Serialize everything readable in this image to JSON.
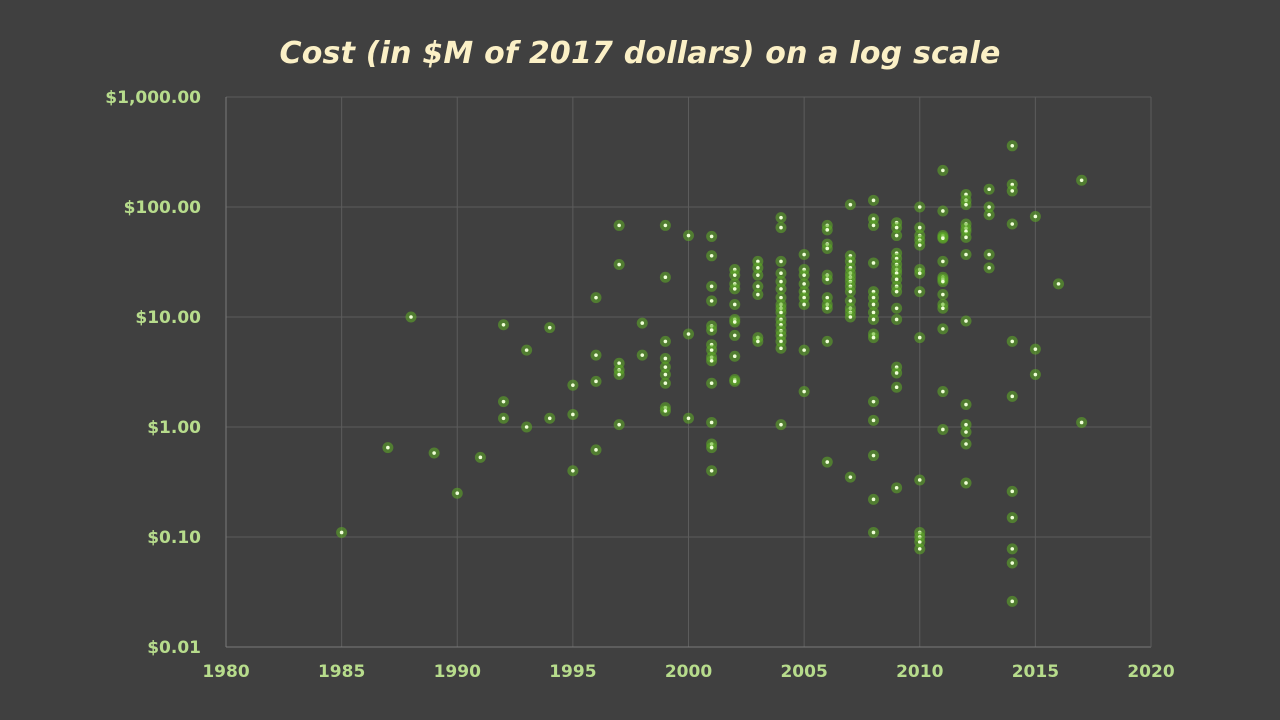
{
  "colors": {
    "background": "#404040",
    "title": "#fbf0c6",
    "tick_label": "#b7dc8c",
    "point": "#7ed957"
  },
  "chart_data": {
    "type": "scatter",
    "title": "Cost (in $M of 2017 dollars) on a log scale",
    "xlabel": "",
    "ylabel": "",
    "xlim": [
      1980,
      2020
    ],
    "ylim": [
      0.01,
      1000
    ],
    "yscale": "log",
    "grid": true,
    "legend": "none",
    "x_ticks": [
      "1980",
      "1985",
      "1990",
      "1995",
      "2000",
      "2005",
      "2010",
      "2015",
      "2020"
    ],
    "y_ticks": [
      "$0.01",
      "$0.10",
      "$1.00",
      "$10.00",
      "$100.00",
      "$1,000.00"
    ],
    "points": [
      [
        1985,
        0.11
      ],
      [
        1987,
        0.65
      ],
      [
        1988,
        10
      ],
      [
        1989,
        0.58
      ],
      [
        1990,
        0.25
      ],
      [
        1991,
        0.53
      ],
      [
        1992,
        8.5
      ],
      [
        1992,
        1.7
      ],
      [
        1992,
        1.2
      ],
      [
        1993,
        5
      ],
      [
        1993,
        1.0
      ],
      [
        1994,
        8
      ],
      [
        1994,
        1.2
      ],
      [
        1995,
        2.4
      ],
      [
        1995,
        1.3
      ],
      [
        1995,
        0.4
      ],
      [
        1996,
        15
      ],
      [
        1996,
        4.5
      ],
      [
        1996,
        2.6
      ],
      [
        1996,
        0.62
      ],
      [
        1997,
        68
      ],
      [
        1997,
        30
      ],
      [
        1997,
        3.8
      ],
      [
        1997,
        3.3
      ],
      [
        1997,
        3.0
      ],
      [
        1997,
        1.05
      ],
      [
        1998,
        8.8
      ],
      [
        1998,
        4.5
      ],
      [
        1999,
        68
      ],
      [
        1999,
        23
      ],
      [
        1999,
        6
      ],
      [
        1999,
        4.2
      ],
      [
        1999,
        3.5
      ],
      [
        1999,
        3.0
      ],
      [
        1999,
        2.5
      ],
      [
        1999,
        1.5
      ],
      [
        1999,
        1.4
      ],
      [
        2000,
        55
      ],
      [
        2000,
        7
      ],
      [
        2000,
        1.2
      ],
      [
        2001,
        54
      ],
      [
        2001,
        36
      ],
      [
        2001,
        19
      ],
      [
        2001,
        14
      ],
      [
        2001,
        8.3
      ],
      [
        2001,
        7.6
      ],
      [
        2001,
        5.6
      ],
      [
        2001,
        5
      ],
      [
        2001,
        4.3
      ],
      [
        2001,
        4
      ],
      [
        2001,
        2.5
      ],
      [
        2001,
        1.1
      ],
      [
        2001,
        0.7
      ],
      [
        2001,
        0.65
      ],
      [
        2001,
        0.4
      ],
      [
        2002,
        27
      ],
      [
        2002,
        24
      ],
      [
        2002,
        20
      ],
      [
        2002,
        18
      ],
      [
        2002,
        13
      ],
      [
        2002,
        9.5
      ],
      [
        2002,
        9
      ],
      [
        2002,
        6.8
      ],
      [
        2002,
        4.4
      ],
      [
        2002,
        2.7
      ],
      [
        2002,
        2.6
      ],
      [
        2003,
        32
      ],
      [
        2003,
        28
      ],
      [
        2003,
        24
      ],
      [
        2003,
        19
      ],
      [
        2003,
        16
      ],
      [
        2003,
        6.5
      ],
      [
        2003,
        6.0
      ],
      [
        2004,
        80
      ],
      [
        2004,
        65
      ],
      [
        2004,
        32
      ],
      [
        2004,
        25
      ],
      [
        2004,
        21
      ],
      [
        2004,
        18
      ],
      [
        2004,
        15
      ],
      [
        2004,
        13
      ],
      [
        2004,
        12
      ],
      [
        2004,
        11
      ],
      [
        2004,
        9.5
      ],
      [
        2004,
        8.5
      ],
      [
        2004,
        7.5
      ],
      [
        2004,
        6.8
      ],
      [
        2004,
        6
      ],
      [
        2004,
        5.2
      ],
      [
        2004,
        1.05
      ],
      [
        2005,
        37
      ],
      [
        2005,
        27
      ],
      [
        2005,
        24
      ],
      [
        2005,
        20
      ],
      [
        2005,
        17
      ],
      [
        2005,
        15
      ],
      [
        2005,
        13
      ],
      [
        2005,
        5
      ],
      [
        2005,
        2.1
      ],
      [
        2006,
        68
      ],
      [
        2006,
        62
      ],
      [
        2006,
        46
      ],
      [
        2006,
        42
      ],
      [
        2006,
        24
      ],
      [
        2006,
        22
      ],
      [
        2006,
        15
      ],
      [
        2006,
        13
      ],
      [
        2006,
        12
      ],
      [
        2006,
        6
      ],
      [
        2006,
        0.48
      ],
      [
        2007,
        105
      ],
      [
        2007,
        36
      ],
      [
        2007,
        32
      ],
      [
        2007,
        28
      ],
      [
        2007,
        25
      ],
      [
        2007,
        23
      ],
      [
        2007,
        21
      ],
      [
        2007,
        19
      ],
      [
        2007,
        17
      ],
      [
        2007,
        14
      ],
      [
        2007,
        12
      ],
      [
        2007,
        11
      ],
      [
        2007,
        10
      ],
      [
        2007,
        0.35
      ],
      [
        2008,
        115
      ],
      [
        2008,
        78
      ],
      [
        2008,
        68
      ],
      [
        2008,
        31
      ],
      [
        2008,
        17
      ],
      [
        2008,
        15
      ],
      [
        2008,
        13
      ],
      [
        2008,
        11
      ],
      [
        2008,
        9.5
      ],
      [
        2008,
        7
      ],
      [
        2008,
        6.5
      ],
      [
        2008,
        1.7
      ],
      [
        2008,
        1.15
      ],
      [
        2008,
        0.55
      ],
      [
        2008,
        0.22
      ],
      [
        2008,
        0.11
      ],
      [
        2009,
        72
      ],
      [
        2009,
        65
      ],
      [
        2009,
        55
      ],
      [
        2009,
        38
      ],
      [
        2009,
        34
      ],
      [
        2009,
        30
      ],
      [
        2009,
        27
      ],
      [
        2009,
        25
      ],
      [
        2009,
        22
      ],
      [
        2009,
        19
      ],
      [
        2009,
        17
      ],
      [
        2009,
        12
      ],
      [
        2009,
        9.5
      ],
      [
        2009,
        3.5
      ],
      [
        2009,
        3.1
      ],
      [
        2009,
        2.3
      ],
      [
        2009,
        0.28
      ],
      [
        2010,
        100
      ],
      [
        2010,
        65
      ],
      [
        2010,
        55
      ],
      [
        2010,
        50
      ],
      [
        2010,
        45
      ],
      [
        2010,
        27
      ],
      [
        2010,
        25
      ],
      [
        2010,
        17
      ],
      [
        2010,
        6.5
      ],
      [
        2010,
        0.33
      ],
      [
        2010,
        0.11
      ],
      [
        2010,
        0.1
      ],
      [
        2010,
        0.09
      ],
      [
        2010,
        0.078
      ],
      [
        2011,
        215
      ],
      [
        2011,
        92
      ],
      [
        2011,
        55
      ],
      [
        2011,
        53
      ],
      [
        2011,
        52
      ],
      [
        2011,
        32
      ],
      [
        2011,
        23
      ],
      [
        2011,
        22
      ],
      [
        2011,
        21
      ],
      [
        2011,
        16
      ],
      [
        2011,
        13
      ],
      [
        2011,
        12
      ],
      [
        2011,
        7.8
      ],
      [
        2011,
        2.1
      ],
      [
        2011,
        0.95
      ],
      [
        2012,
        130
      ],
      [
        2012,
        115
      ],
      [
        2012,
        105
      ],
      [
        2012,
        70
      ],
      [
        2012,
        64
      ],
      [
        2012,
        60
      ],
      [
        2012,
        53
      ],
      [
        2012,
        37
      ],
      [
        2012,
        9.2
      ],
      [
        2012,
        1.6
      ],
      [
        2012,
        1.05
      ],
      [
        2012,
        0.9
      ],
      [
        2012,
        0.7
      ],
      [
        2012,
        0.31
      ],
      [
        2013,
        145
      ],
      [
        2013,
        100
      ],
      [
        2013,
        85
      ],
      [
        2013,
        37
      ],
      [
        2013,
        28
      ],
      [
        2014,
        360
      ],
      [
        2014,
        160
      ],
      [
        2014,
        140
      ],
      [
        2014,
        70
      ],
      [
        2014,
        6
      ],
      [
        2014,
        1.9
      ],
      [
        2014,
        0.26
      ],
      [
        2014,
        0.15
      ],
      [
        2014,
        0.078
      ],
      [
        2014,
        0.058
      ],
      [
        2014,
        0.026
      ],
      [
        2015,
        82
      ],
      [
        2015,
        5.1
      ],
      [
        2015,
        3.0
      ],
      [
        2016,
        20
      ],
      [
        2017,
        175
      ],
      [
        2017,
        1.1
      ]
    ]
  }
}
